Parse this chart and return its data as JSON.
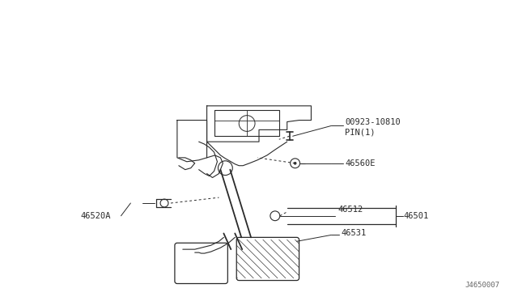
{
  "bg_color": "#ffffff",
  "line_color": "#2a2a2a",
  "text_color": "#2a2a2a",
  "figsize": [
    6.4,
    3.72
  ],
  "dpi": 100,
  "watermark": "J4650007",
  "label_00923": "00923-10810",
  "label_pin": "PIN(1)",
  "label_46560": "46560E",
  "label_46512": "46512",
  "label_46501": "46501",
  "label_46520": "46520A",
  "label_46531": "46531"
}
